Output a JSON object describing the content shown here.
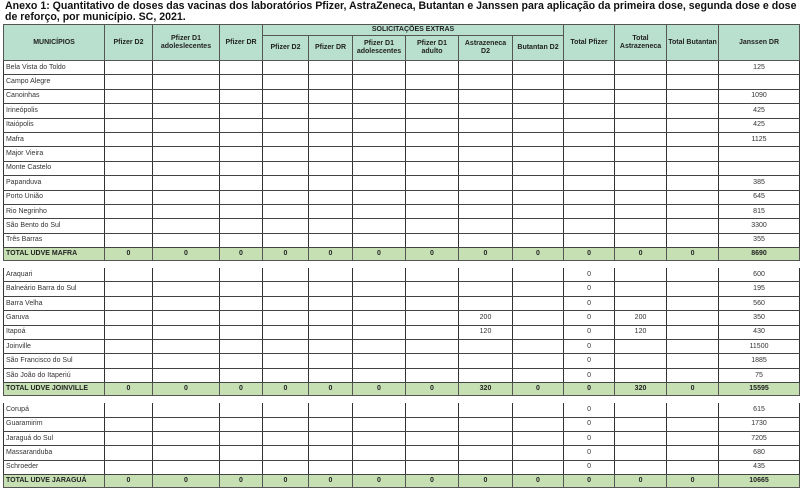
{
  "title": "Anexo 1: Quantitativo de doses das vacinas dos laboratórios Pfizer, AstraZeneca, Butantan e Janssen para aplicação da primeira dose, segunda dose e dose de reforço, por município. SC, 2021.",
  "headers": {
    "municipios": "MUNICÍPIOS",
    "pfizer_d2": "Pfizer D2",
    "pfizer_d1_adol": "Pfizer D1 adoleslecentes",
    "pfizer_dr": "Pfizer DR",
    "extras": "SOLICITAÇÕES EXTRAS",
    "extras_cols": [
      "Pfizer D2",
      "Pfizer DR",
      "Pfizer D1 adolescentes",
      "Pfizer D1 adulto",
      "Astrazeneca D2",
      "Butantan D2"
    ],
    "total_pfizer": "Total Pfizer",
    "total_astrazeneca": "Total Astrazeneca",
    "total_butantan": "Total Butantan",
    "janssen_dr": "Janssen DR"
  },
  "sections": [
    {
      "rows": [
        [
          "Bela Vista do Toldo",
          "",
          "",
          "",
          "",
          "",
          "",
          "",
          "",
          "",
          "",
          "",
          "",
          "125"
        ],
        [
          "Campo Alegre",
          "",
          "",
          "",
          "",
          "",
          "",
          "",
          "",
          "",
          "",
          "",
          "",
          ""
        ],
        [
          "Canoinhas",
          "",
          "",
          "",
          "",
          "",
          "",
          "",
          "",
          "",
          "",
          "",
          "",
          "1090"
        ],
        [
          "Irineópolis",
          "",
          "",
          "",
          "",
          "",
          "",
          "",
          "",
          "",
          "",
          "",
          "",
          "425"
        ],
        [
          "Itaiópolis",
          "",
          "",
          "",
          "",
          "",
          "",
          "",
          "",
          "",
          "",
          "",
          "",
          "425"
        ],
        [
          "Mafra",
          "",
          "",
          "",
          "",
          "",
          "",
          "",
          "",
          "",
          "",
          "",
          "",
          "1125"
        ],
        [
          "Major Vieira",
          "",
          "",
          "",
          "",
          "",
          "",
          "",
          "",
          "",
          "",
          "",
          "",
          ""
        ],
        [
          "Monte Castelo",
          "",
          "",
          "",
          "",
          "",
          "",
          "",
          "",
          "",
          "",
          "",
          "",
          ""
        ],
        [
          "Papanduva",
          "",
          "",
          "",
          "",
          "",
          "",
          "",
          "",
          "",
          "",
          "",
          "",
          "385"
        ],
        [
          "Porto União",
          "",
          "",
          "",
          "",
          "",
          "",
          "",
          "",
          "",
          "",
          "",
          "",
          "645"
        ],
        [
          "Rio Negrinho",
          "",
          "",
          "",
          "",
          "",
          "",
          "",
          "",
          "",
          "",
          "",
          "",
          "815"
        ],
        [
          "São Bento do Sul",
          "",
          "",
          "",
          "",
          "",
          "",
          "",
          "",
          "",
          "",
          "",
          "",
          "3300"
        ],
        [
          "Três Barras",
          "",
          "",
          "",
          "",
          "",
          "",
          "",
          "",
          "",
          "",
          "",
          "",
          "355"
        ]
      ],
      "total": [
        "TOTAL UDVE MAFRA",
        "0",
        "0",
        "0",
        "0",
        "0",
        "0",
        "0",
        "0",
        "0",
        "0",
        "0",
        "0",
        "8690"
      ]
    },
    {
      "rows": [
        [
          "Araquari",
          "",
          "",
          "",
          "",
          "",
          "",
          "",
          "",
          "",
          "0",
          "",
          "",
          "600"
        ],
        [
          "Balneário Barra do Sul",
          "",
          "",
          "",
          "",
          "",
          "",
          "",
          "",
          "",
          "0",
          "",
          "",
          "195"
        ],
        [
          "Barra Velha",
          "",
          "",
          "",
          "",
          "",
          "",
          "",
          "",
          "",
          "0",
          "",
          "",
          "560"
        ],
        [
          "Garuva",
          "",
          "",
          "",
          "",
          "",
          "",
          "",
          "200",
          "",
          "0",
          "200",
          "",
          "350"
        ],
        [
          "Itapoá",
          "",
          "",
          "",
          "",
          "",
          "",
          "",
          "120",
          "",
          "0",
          "120",
          "",
          "430"
        ],
        [
          "Joinville",
          "",
          "",
          "",
          "",
          "",
          "",
          "",
          "",
          "",
          "0",
          "",
          "",
          "11500"
        ],
        [
          "São Francisco do Sul",
          "",
          "",
          "",
          "",
          "",
          "",
          "",
          "",
          "",
          "0",
          "",
          "",
          "1885"
        ],
        [
          "São João do Itaperiú",
          "",
          "",
          "",
          "",
          "",
          "",
          "",
          "",
          "",
          "0",
          "",
          "",
          "75"
        ]
      ],
      "total": [
        "TOTAL UDVE JOINVILLE",
        "0",
        "0",
        "0",
        "0",
        "0",
        "0",
        "0",
        "320",
        "0",
        "0",
        "320",
        "0",
        "15595"
      ]
    },
    {
      "rows": [
        [
          "Corupá",
          "",
          "",
          "",
          "",
          "",
          "",
          "",
          "",
          "",
          "0",
          "",
          "",
          "615"
        ],
        [
          "Guaramirim",
          "",
          "",
          "",
          "",
          "",
          "",
          "",
          "",
          "",
          "0",
          "",
          "",
          "1730"
        ],
        [
          "Jaraguá do Sul",
          "",
          "",
          "",
          "",
          "",
          "",
          "",
          "",
          "",
          "0",
          "",
          "",
          "7205"
        ],
        [
          "Massaranduba",
          "",
          "",
          "",
          "",
          "",
          "",
          "",
          "",
          "",
          "0",
          "",
          "",
          "680"
        ],
        [
          "Schroeder",
          "",
          "",
          "",
          "",
          "",
          "",
          "",
          "",
          "",
          "0",
          "",
          "",
          "435"
        ]
      ],
      "total": [
        "TOTAL UDVE JARAGUÁ",
        "0",
        "0",
        "0",
        "0",
        "0",
        "0",
        "0",
        "0",
        "0",
        "0",
        "0",
        "0",
        "10665"
      ]
    }
  ],
  "colors": {
    "header_bg": "#b9e0cf",
    "total_row_bg": "#c6e0b4"
  }
}
